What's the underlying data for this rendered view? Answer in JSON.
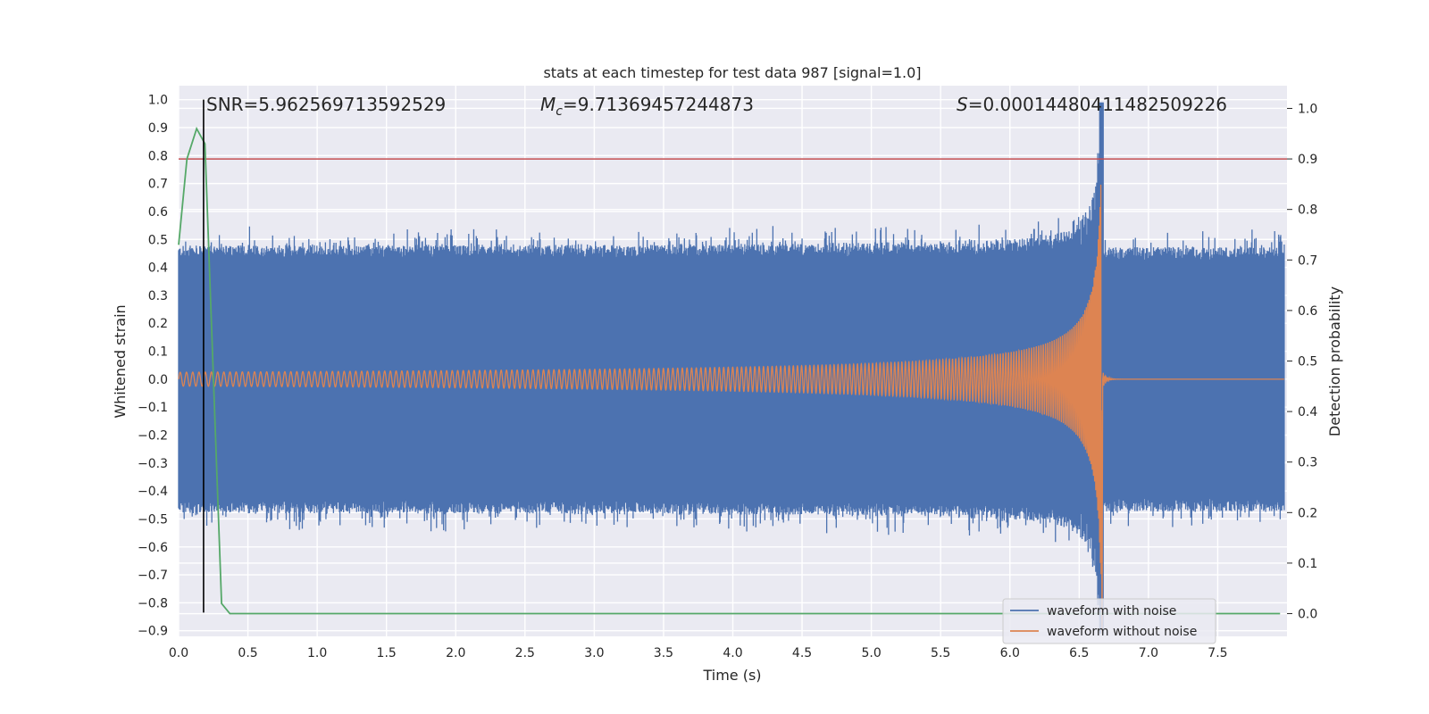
{
  "chart_data": {
    "type": "line",
    "title": "stats at each timestep for test data 987 [signal=1.0]",
    "xlabel": "Time (s)",
    "ylabel": "Whitened strain",
    "y2label": "Detection probability",
    "xlim": [
      0.0,
      8.0
    ],
    "ylim": [
      -0.92,
      1.05
    ],
    "y2lim": [
      -0.045,
      1.045
    ],
    "x_ticks": [
      "0.0",
      "0.5",
      "1.0",
      "1.5",
      "2.0",
      "2.5",
      "3.0",
      "3.5",
      "4.0",
      "4.5",
      "5.0",
      "5.5",
      "6.0",
      "6.5",
      "7.0",
      "7.5"
    ],
    "y_ticks": [
      "1.0",
      "0.9",
      "0.8",
      "0.7",
      "0.6",
      "0.5",
      "0.4",
      "0.3",
      "0.2",
      "0.1",
      "0.0",
      "−0.1",
      "−0.2",
      "−0.3",
      "−0.4",
      "−0.5",
      "−0.6",
      "−0.7",
      "−0.8",
      "−0.9"
    ],
    "y2_ticks": [
      "1.0",
      "0.9",
      "0.8",
      "0.7",
      "0.6",
      "0.5",
      "0.4",
      "0.3",
      "0.2",
      "0.1",
      "0.0"
    ],
    "grid": true,
    "legend_position": "bottom-right",
    "annotations": {
      "snr": "SNR=5.962569713592529",
      "mc_prefix": "M",
      "mc_sub": "c",
      "mc_value": "=9.71369457244873",
      "s_prefix": "S",
      "s_value": "=0.00014480411482509226"
    },
    "merger_time": 6.66,
    "series": [
      {
        "name": "waveform with noise",
        "color": "#4c72b0",
        "noise_band": [
          -0.45,
          0.45
        ],
        "max_peak": 0.99,
        "min_peak": -0.91
      },
      {
        "name": "waveform without noise",
        "color": "#dd8452",
        "start_amplitude": 0.025,
        "peak_amplitude": 0.78,
        "min_peak": -0.91
      },
      {
        "name": "",
        "color": "#55a868",
        "axis": "right",
        "x": [
          0.0,
          0.06,
          0.13,
          0.19,
          0.31,
          0.37,
          7.95
        ],
        "y": [
          0.73,
          0.9,
          0.96,
          0.93,
          0.02,
          0.0,
          0.0
        ]
      }
    ],
    "threshold": {
      "axis": "right",
      "value": 0.9,
      "color": "#c44e52"
    },
    "vline": {
      "x": 0.18,
      "y_from": -0.835,
      "y_to": 1.0,
      "color": "#000000"
    }
  }
}
